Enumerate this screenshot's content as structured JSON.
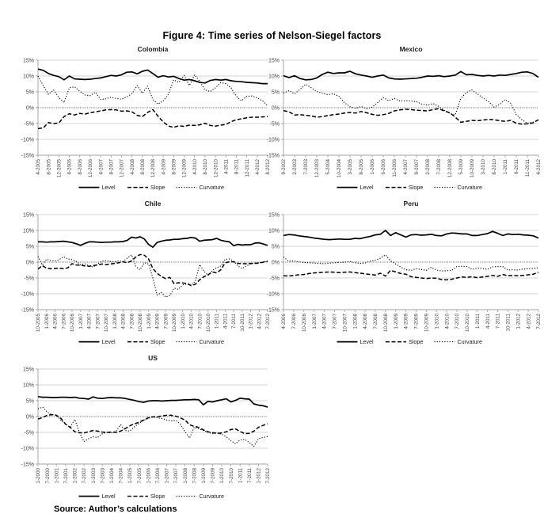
{
  "figure": {
    "title": "Figure 4: Time series of Nelson-Siegel factors",
    "source": "Source: Author’s calculations"
  },
  "legend": [
    "Level",
    "Slope",
    "Curvature"
  ],
  "colors": {
    "series": "#000000",
    "grid": "#c9c9c9",
    "zero_line": "#595959",
    "axis": "#a0a0a0",
    "label": "#404040",
    "title": "#1a1a1a"
  },
  "y_ticks": [
    "15%",
    "10%",
    "5%",
    "0%",
    "-5%",
    "-10%",
    "-15%"
  ],
  "chart_data": [
    {
      "id": "colombia",
      "type": "line",
      "title": "Colombia",
      "ylim": [
        -15,
        15
      ],
      "x_labels": [
        "4-2005",
        "8-2005",
        "12-2005",
        "4-2006",
        "8-2006",
        "12-2006",
        "4-2007",
        "8-2007",
        "12-2007",
        "4-2008",
        "8-2008",
        "12-2008",
        "4-2009",
        "8-2009",
        "12-2009",
        "4-2010",
        "8-2010",
        "12-2010",
        "4-2011",
        "8-2011",
        "12-2011",
        "4-2012",
        "8-2012"
      ],
      "series": [
        {
          "name": "Level",
          "style": "solid",
          "values": [
            12.2,
            11.8,
            10.8,
            10.2,
            9.8,
            8.8,
            10.0,
            9.1,
            9.0,
            8.9,
            9.0,
            9.2,
            9.4,
            9.8,
            10.2,
            10.0,
            10.4,
            11.2,
            11.3,
            10.7,
            11.5,
            11.9,
            10.8,
            9.6,
            10.1,
            9.7,
            9.9,
            9.2,
            8.7,
            8.9,
            8.5,
            8.0,
            7.8,
            8.6,
            8.9,
            8.7,
            8.9,
            8.5,
            8.3,
            8.2,
            8.0,
            7.9,
            7.8,
            7.6,
            7.6
          ]
        },
        {
          "name": "Slope",
          "style": "dashed",
          "values": [
            -6.6,
            -6.4,
            -4.7,
            -5.0,
            -4.8,
            -2.8,
            -1.9,
            -2.3,
            -1.8,
            -2.0,
            -1.6,
            -1.3,
            -1.0,
            -0.7,
            -0.6,
            -0.7,
            -1.1,
            -1.0,
            -1.3,
            -2.4,
            -2.8,
            -1.5,
            -0.6,
            -2.7,
            -4.5,
            -5.8,
            -6.2,
            -5.7,
            -5.9,
            -5.5,
            -5.6,
            -5.4,
            -4.9,
            -5.6,
            -5.8,
            -5.5,
            -5.3,
            -4.4,
            -3.8,
            -3.5,
            -3.2,
            -3.0,
            -3.0,
            -2.9,
            -2.8
          ]
        },
        {
          "name": "Curvature",
          "style": "dotted",
          "values": [
            10.0,
            7.0,
            4.2,
            5.6,
            3.2,
            1.6,
            6.3,
            6.6,
            5.2,
            4.0,
            3.8,
            4.9,
            2.6,
            2.8,
            3.3,
            2.9,
            2.7,
            3.4,
            4.4,
            7.0,
            4.6,
            6.8,
            2.6,
            1.1,
            2.2,
            4.3,
            8.8,
            8.0,
            10.2,
            7.0,
            10.4,
            8.3,
            5.6,
            5.1,
            6.3,
            7.9,
            7.6,
            6.2,
            3.6,
            2.2,
            3.6,
            3.7,
            3.1,
            2.2,
            0.6
          ]
        }
      ]
    },
    {
      "id": "mexico",
      "type": "line",
      "title": "Mexico",
      "ylim": [
        -15,
        15
      ],
      "x_labels": [
        "9-2002",
        "2-2003",
        "7-2003",
        "12-2003",
        "5-2004",
        "10-2004",
        "3-2005",
        "8-2005",
        "1-2006",
        "6-2006",
        "11-2006",
        "4-2007",
        "9-2007",
        "2-2008",
        "7-2008",
        "12-2008",
        "5-2009",
        "10-2009",
        "3-2010",
        "8-2010",
        "1-2011",
        "6-2011",
        "11-2011",
        "4-2012"
      ],
      "series": [
        {
          "name": "Level",
          "style": "solid",
          "values": [
            10.1,
            9.5,
            10.1,
            9.2,
            8.8,
            8.9,
            9.4,
            10.5,
            11.2,
            10.8,
            11.0,
            11.0,
            11.5,
            10.7,
            10.3,
            10.0,
            9.6,
            10.0,
            10.3,
            9.4,
            9.1,
            9.0,
            9.1,
            9.2,
            9.3,
            9.6,
            10.0,
            9.9,
            10.1,
            9.8,
            10.0,
            10.3,
            11.4,
            10.4,
            10.5,
            10.2,
            10.0,
            10.2,
            10.0,
            10.3,
            10.2,
            10.5,
            10.8,
            11.2,
            11.3,
            10.8,
            9.6
          ]
        },
        {
          "name": "Slope",
          "style": "dashed",
          "values": [
            -0.9,
            -1.3,
            -2.3,
            -2.2,
            -2.4,
            -2.6,
            -3.0,
            -2.8,
            -2.5,
            -2.2,
            -2.0,
            -1.7,
            -1.5,
            -1.7,
            -1.2,
            -1.6,
            -2.1,
            -2.4,
            -2.2,
            -1.8,
            -1.0,
            -0.7,
            -0.5,
            -0.6,
            -0.8,
            -0.9,
            -1.0,
            -0.6,
            -0.3,
            -1.0,
            -1.6,
            -3.0,
            -4.6,
            -4.3,
            -4.0,
            -4.1,
            -3.9,
            -3.7,
            -3.8,
            -4.1,
            -4.3,
            -4.0,
            -4.9,
            -5.2,
            -5.1,
            -4.8,
            -3.8
          ]
        },
        {
          "name": "Curvature",
          "style": "dotted",
          "values": [
            4.6,
            5.4,
            4.4,
            5.8,
            7.4,
            6.3,
            5.1,
            4.6,
            4.1,
            4.4,
            3.6,
            1.6,
            0.3,
            -0.2,
            0.4,
            -0.3,
            0.2,
            1.6,
            3.2,
            2.2,
            2.9,
            2.1,
            2.2,
            2.1,
            1.9,
            1.1,
            0.8,
            1.3,
            0.4,
            -0.8,
            -1.8,
            -2.2,
            3.0,
            4.8,
            5.6,
            4.3,
            3.1,
            1.9,
            0.2,
            1.0,
            2.6,
            1.4,
            -2.2,
            -3.8,
            -4.9,
            -4.6,
            -3.9
          ]
        }
      ]
    },
    {
      "id": "chile",
      "type": "line",
      "title": "Chile",
      "ylim": [
        -15,
        15
      ],
      "x_labels": [
        "10-2005",
        "1-2006",
        "4-2006",
        "7-2006",
        "10-2006",
        "1-2007",
        "4-2007",
        "7-2007",
        "10-2007",
        "1-2008",
        "4-2008",
        "7-2008",
        "10-2008",
        "1-2009",
        "4-2009",
        "7-2009",
        "10-2009",
        "1-2010",
        "4-2010",
        "7-2010",
        "10-2010",
        "1-2011",
        "4-2011",
        "7-2011",
        "10-2011",
        "1-2012",
        "4-2012",
        "7-2012"
      ],
      "series": [
        {
          "name": "Level",
          "style": "solid",
          "values": [
            6.4,
            6.4,
            6.3,
            6.4,
            6.4,
            6.5,
            6.6,
            6.4,
            6.2,
            5.8,
            5.3,
            5.9,
            6.4,
            6.4,
            6.3,
            6.2,
            6.3,
            6.3,
            6.4,
            6.4,
            6.5,
            6.9,
            7.9,
            7.6,
            8.0,
            7.3,
            5.6,
            4.7,
            6.2,
            6.6,
            6.9,
            7.0,
            7.2,
            7.2,
            7.4,
            7.5,
            7.8,
            7.6,
            6.6,
            6.9,
            7.0,
            7.1,
            7.5,
            6.9,
            6.6,
            6.4,
            5.2,
            5.6,
            5.4,
            5.5,
            5.5,
            6.0,
            6.1,
            5.7,
            5.3
          ]
        },
        {
          "name": "Slope",
          "style": "dashed",
          "values": [
            -2.2,
            -1.1,
            -1.9,
            -2.1,
            -2.0,
            -1.9,
            -2.1,
            -1.8,
            -0.5,
            -0.9,
            -1.0,
            -1.2,
            -1.3,
            -1.1,
            -0.9,
            -0.6,
            -0.8,
            -0.6,
            -0.4,
            -0.2,
            0.1,
            -0.2,
            0.4,
            1.6,
            2.4,
            2.2,
            1.0,
            -2.0,
            -3.5,
            -4.5,
            -5.2,
            -4.8,
            -6.8,
            -6.5,
            -6.6,
            -6.7,
            -7.4,
            -7.0,
            -5.6,
            -4.6,
            -4.0,
            -3.1,
            -3.4,
            -2.4,
            -0.2,
            0.1,
            0.1,
            -0.4,
            -0.5,
            -0.5,
            -0.4,
            -0.4,
            -0.3,
            0.0,
            0.2
          ]
        },
        {
          "name": "Curvature",
          "style": "dotted",
          "values": [
            1.8,
            -0.9,
            0.9,
            0.5,
            0.4,
            0.8,
            1.7,
            1.0,
            0.8,
            0.2,
            -0.8,
            -0.5,
            -1.3,
            -1.5,
            -0.6,
            0.3,
            0.5,
            0.2,
            0.1,
            0.4,
            0.2,
            1.3,
            2.3,
            -1.4,
            -2.4,
            -0.2,
            -0.6,
            -5.0,
            -10.4,
            -9.6,
            -11.0,
            -10.6,
            -8.2,
            -8.6,
            -7.2,
            -6.9,
            -7.4,
            -6.0,
            -0.8,
            -2.8,
            -4.2,
            -2.6,
            -1.8,
            -1.2,
            0.9,
            1.0,
            0.3,
            -1.2,
            -2.0,
            -1.2,
            -0.6,
            -0.3,
            -0.2,
            0.0,
            0.4
          ]
        }
      ]
    },
    {
      "id": "peru",
      "type": "line",
      "title": "Peru",
      "ylim": [
        -15,
        15
      ],
      "x_labels": [
        "4-2006",
        "7-2006",
        "10-2006",
        "1-2007",
        "4-2007",
        "7-2007",
        "10-2007",
        "1-2008",
        "4-2008",
        "7-2008",
        "10-2008",
        "1-2009",
        "4-2009",
        "7-2009",
        "10-2009",
        "1-2010",
        "4-2010",
        "7-2010",
        "10-2010",
        "1-2011",
        "4-2011",
        "7-2011",
        "10-2011",
        "1-2012",
        "4-2012",
        "7-2012"
      ],
      "series": [
        {
          "name": "Level",
          "style": "solid",
          "values": [
            8.4,
            8.7,
            8.6,
            8.3,
            8.1,
            7.9,
            7.6,
            7.4,
            7.2,
            7.1,
            7.2,
            7.3,
            7.2,
            7.2,
            7.5,
            7.4,
            7.8,
            8.1,
            8.6,
            8.8,
            10.0,
            8.4,
            9.3,
            8.6,
            7.9,
            8.6,
            8.7,
            8.5,
            8.6,
            8.8,
            8.4,
            8.3,
            8.9,
            9.2,
            9.1,
            8.9,
            8.9,
            8.4,
            8.4,
            8.7,
            9.0,
            9.7,
            9.1,
            8.4,
            8.9,
            8.7,
            8.8,
            8.6,
            8.5,
            8.3,
            7.6
          ]
        },
        {
          "name": "Slope",
          "style": "dashed",
          "values": [
            -4.3,
            -4.4,
            -4.2,
            -4.0,
            -3.9,
            -3.6,
            -3.4,
            -3.3,
            -3.2,
            -3.1,
            -3.2,
            -3.3,
            -3.2,
            -3.1,
            -3.3,
            -3.5,
            -3.7,
            -3.9,
            -4.1,
            -3.5,
            -4.4,
            -2.6,
            -3.1,
            -3.6,
            -3.8,
            -4.6,
            -4.8,
            -5.0,
            -5.2,
            -5.0,
            -5.1,
            -5.5,
            -5.6,
            -5.4,
            -5.0,
            -4.7,
            -4.8,
            -4.6,
            -4.9,
            -4.7,
            -4.5,
            -4.2,
            -4.5,
            -3.9,
            -4.3,
            -4.2,
            -4.3,
            -4.2,
            -4.0,
            -3.8,
            -3.2
          ]
        },
        {
          "name": "Curvature",
          "style": "dotted",
          "values": [
            1.6,
            0.3,
            0.4,
            0.1,
            -0.1,
            -0.2,
            -0.3,
            -0.4,
            -0.5,
            -0.3,
            -0.2,
            -0.1,
            0.0,
            0.2,
            -0.2,
            -0.4,
            -0.3,
            0.3,
            0.6,
            1.2,
            2.3,
            0.4,
            -0.6,
            -1.6,
            -2.4,
            -2.6,
            -2.1,
            -2.3,
            -2.6,
            -1.6,
            -2.5,
            -2.8,
            -2.7,
            -2.6,
            -1.4,
            -1.3,
            -1.4,
            -2.3,
            -1.9,
            -2.0,
            -2.3,
            -1.5,
            -1.4,
            -1.4,
            -2.5,
            -2.4,
            -2.5,
            -2.2,
            -2.1,
            -2.0,
            -1.8
          ]
        }
      ]
    },
    {
      "id": "us",
      "type": "line",
      "title": "US",
      "ylim": [
        -15,
        15
      ],
      "x_labels": [
        "1-2000",
        "7-2000",
        "1-2001",
        "7-2001",
        "1-2002",
        "7-2002",
        "1-2003",
        "7-2003",
        "1-2004",
        "7-2004",
        "1-2005",
        "7-2005",
        "1-2006",
        "7-2006",
        "1-2007",
        "7-2007",
        "1-2008",
        "7-2008",
        "1-2009",
        "7-2009",
        "1-2010",
        "7-2010",
        "1-2011",
        "7-2011",
        "1-2012",
        "7-2012"
      ],
      "series": [
        {
          "name": "Level",
          "style": "solid",
          "values": [
            6.3,
            6.1,
            6.1,
            6.0,
            6.0,
            6.1,
            6.1,
            6.0,
            6.1,
            5.8,
            5.7,
            5.5,
            6.2,
            5.8,
            5.7,
            5.9,
            6.0,
            5.9,
            5.9,
            5.7,
            5.4,
            5.1,
            4.7,
            4.5,
            4.9,
            5.0,
            5.0,
            4.9,
            5.0,
            5.1,
            5.1,
            5.2,
            5.3,
            5.3,
            5.4,
            5.3,
            3.7,
            4.8,
            4.6,
            5.0,
            5.3,
            5.6,
            4.6,
            5.1,
            5.8,
            5.6,
            5.5,
            4.0,
            3.6,
            3.4,
            3.0
          ]
        },
        {
          "name": "Slope",
          "style": "dashed",
          "values": [
            -0.8,
            -0.3,
            0.4,
            0.6,
            0.4,
            -0.6,
            -2.4,
            -3.4,
            -4.8,
            -5.1,
            -5.2,
            -4.8,
            -4.4,
            -4.6,
            -4.9,
            -5.0,
            -4.9,
            -5.0,
            -4.6,
            -3.8,
            -2.9,
            -2.3,
            -1.8,
            -1.1,
            -0.4,
            -0.1,
            -0.1,
            0.2,
            0.4,
            0.4,
            0.1,
            -0.4,
            -1.1,
            -2.6,
            -3.1,
            -3.4,
            -4.2,
            -4.8,
            -5.1,
            -5.3,
            -5.2,
            -4.8,
            -4.1,
            -3.9,
            -4.7,
            -5.4,
            -5.3,
            -4.6,
            -3.4,
            -2.8,
            -2.3
          ]
        },
        {
          "name": "Curvature",
          "style": "dotted",
          "values": [
            2.4,
            3.0,
            1.4,
            0.6,
            0.5,
            -1.2,
            -2.4,
            -3.4,
            -0.9,
            -4.9,
            -7.9,
            -7.0,
            -6.4,
            -6.6,
            -5.4,
            -5.0,
            -5.2,
            -4.6,
            -2.6,
            -4.4,
            -4.6,
            -3.2,
            -2.2,
            -1.2,
            -0.6,
            -0.1,
            -0.4,
            -0.6,
            -1.1,
            -1.4,
            -1.2,
            -2.4,
            -4.8,
            -6.8,
            -3.4,
            -3.9,
            -4.4,
            -5.0,
            -5.4,
            -5.2,
            -5.6,
            -6.4,
            -7.6,
            -8.6,
            -7.4,
            -7.2,
            -8.2,
            -9.4,
            -7.0,
            -6.6,
            -6.3
          ]
        }
      ]
    }
  ]
}
